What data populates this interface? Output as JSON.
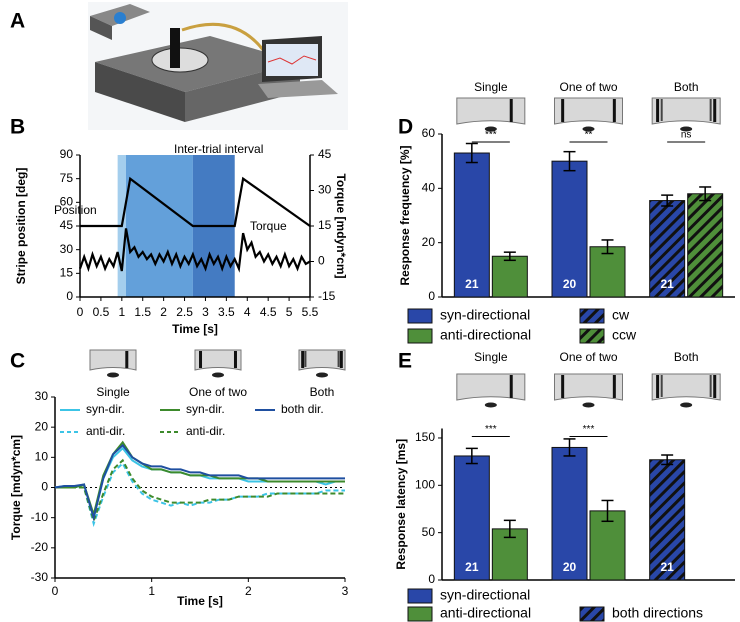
{
  "panels": [
    "A",
    "B",
    "C",
    "D",
    "E"
  ],
  "chart_data": [
    {
      "type": "line",
      "xlabel": "Time [s]",
      "ylabel": "Stripe position [deg]",
      "y2label": "Torque [mdyn*cm]",
      "annotations": [
        "Inter-trial interval"
      ],
      "shaded": [
        {
          "x0": 0.9,
          "x1": 1.1,
          "color": "#9fcbec"
        },
        {
          "x0": 1.1,
          "x1": 2.7,
          "color": "#5b9bd8"
        },
        {
          "x0": 2.7,
          "x1": 3.7,
          "color": "#3a74bf"
        }
      ],
      "xlim": [
        0,
        5.5
      ],
      "xticks": [
        0,
        0.5,
        1,
        1.5,
        2,
        2.5,
        3,
        3.5,
        4,
        4.5,
        5,
        5.5
      ],
      "ylim": [
        0,
        90
      ],
      "yticks": [
        0,
        15,
        30,
        45,
        60,
        75,
        90
      ],
      "y2lim": [
        -15,
        45
      ],
      "y2ticks": [
        -15,
        0,
        15,
        30,
        45
      ],
      "series": [
        {
          "name": "Position",
          "color": "#000000",
          "x": [
            0,
            1,
            1.2,
            2.7,
            3.7,
            3.9,
            5.5
          ],
          "values": [
            45,
            45,
            75,
            45,
            45,
            75,
            45
          ]
        },
        {
          "name": "Torque",
          "color": "#000000",
          "axis": "y2",
          "x": [
            0,
            0.1,
            0.2,
            0.3,
            0.4,
            0.5,
            0.6,
            0.7,
            0.8,
            0.9,
            1,
            1.1,
            1.2,
            1.3,
            1.4,
            1.5,
            1.6,
            1.7,
            1.8,
            1.9,
            2,
            2.1,
            2.2,
            2.3,
            2.4,
            2.5,
            2.6,
            2.7,
            2.8,
            2.9,
            3,
            3.1,
            3.2,
            3.3,
            3.4,
            3.5,
            3.6,
            3.7,
            3.8,
            3.9,
            4,
            4.1,
            4.2,
            4.3,
            4.4,
            4.5,
            4.6,
            4.7,
            4.8,
            4.9,
            5,
            5.1,
            5.2,
            5.3,
            5.4,
            5.5
          ],
          "values": [
            -3,
            2,
            -3,
            3,
            -2,
            2,
            -3,
            1,
            -2,
            4,
            -4,
            14,
            4,
            6,
            2,
            4,
            1,
            3,
            -1,
            3,
            0,
            4,
            -1,
            3,
            -2,
            2,
            -1,
            3,
            -2,
            1,
            -3,
            3,
            -1,
            2,
            -3,
            2,
            -2,
            1,
            -3,
            12,
            5,
            8,
            2,
            4,
            0,
            3,
            -1,
            2,
            -2,
            3,
            -2,
            1,
            -3,
            2,
            -1,
            0
          ]
        }
      ]
    },
    {
      "type": "line",
      "xlabel": "Time [s]",
      "ylabel": "Torque [mdyn*cm]",
      "legend_titles": [
        "Single",
        "One of two",
        "Both"
      ],
      "xlim": [
        0,
        3
      ],
      "xticks": [
        0,
        1,
        2,
        3
      ],
      "ylim": [
        -30,
        30
      ],
      "yticks": [
        -30,
        -20,
        -10,
        0,
        10,
        20,
        30
      ],
      "x": [
        0,
        0.1,
        0.2,
        0.3,
        0.4,
        0.5,
        0.6,
        0.7,
        0.8,
        0.9,
        1,
        1.1,
        1.2,
        1.3,
        1.4,
        1.5,
        1.6,
        1.7,
        1.8,
        1.9,
        2,
        2.1,
        2.2,
        2.3,
        2.4,
        2.5,
        2.6,
        2.7,
        2.8,
        2.9,
        3
      ],
      "series": [
        {
          "name": "syn-dir.",
          "color": "#3cc4e6",
          "dashed": false,
          "values": [
            0,
            0.5,
            0,
            1,
            -10,
            3,
            10,
            13,
            9,
            7,
            6,
            6,
            5,
            5,
            4,
            4,
            3,
            3,
            3,
            3,
            2,
            2,
            2,
            2,
            2,
            2,
            2,
            2,
            1,
            2,
            2
          ]
        },
        {
          "name": "anti-dir.",
          "color": "#3cc4e6",
          "dashed": true,
          "values": [
            0,
            0.5,
            0,
            0,
            -12,
            -3,
            5,
            8,
            2,
            -2,
            -4,
            -5,
            -6,
            -5,
            -6,
            -5,
            -5,
            -4,
            -4,
            -3,
            -3,
            -3,
            -2,
            -2,
            -2,
            -2,
            -2,
            -2,
            -1,
            -1,
            -1
          ]
        },
        {
          "name": "syn-dir.",
          "color": "#3d8a2c",
          "dashed": false,
          "values": [
            0,
            0,
            0,
            1,
            -9,
            4,
            11,
            15,
            10,
            8,
            6,
            6,
            5,
            5,
            4,
            4,
            4,
            3,
            3,
            3,
            3,
            3,
            2,
            2,
            2,
            2,
            2,
            2,
            2,
            2,
            2
          ]
        },
        {
          "name": "anti-dir.",
          "color": "#3d8a2c",
          "dashed": true,
          "values": [
            0,
            0,
            0,
            0,
            -11,
            -2,
            6,
            9,
            3,
            -1,
            -3,
            -4,
            -5,
            -5,
            -5,
            -5,
            -4,
            -4,
            -4,
            -3,
            -3,
            -3,
            -3,
            -2,
            -2,
            -2,
            -2,
            -2,
            -2,
            -2,
            -2
          ]
        },
        {
          "name": "both dir.",
          "color": "#1f4fa0",
          "dashed": false,
          "values": [
            0,
            0.5,
            0.5,
            1,
            -10,
            3,
            11,
            14,
            10,
            8,
            7,
            7,
            6,
            6,
            5,
            5,
            4,
            4,
            4,
            4,
            3,
            3,
            3,
            3,
            3,
            3,
            3,
            3,
            3,
            3,
            3
          ]
        }
      ]
    },
    {
      "type": "bar",
      "ylabel": "Response frequency [%]",
      "categories": [
        "Single",
        "One of two",
        "Both"
      ],
      "n": [
        21,
        20,
        21
      ],
      "significance": [
        "***",
        "**",
        "ns"
      ],
      "ylim": [
        0,
        60
      ],
      "yticks": [
        0,
        20,
        40,
        60
      ],
      "series": [
        {
          "name": "syn-directional",
          "color": "#2947a8",
          "hatch": false,
          "values": [
            53,
            50,
            null
          ],
          "errors": [
            3.5,
            3.5,
            null
          ]
        },
        {
          "name": "anti-directional",
          "color": "#4f8f3a",
          "hatch": false,
          "values": [
            15,
            18.5,
            null
          ],
          "errors": [
            1.5,
            2.5,
            null
          ]
        },
        {
          "name": "cw",
          "color": "#2947a8",
          "hatch": true,
          "values": [
            null,
            null,
            35.5
          ],
          "errors": [
            null,
            null,
            2
          ]
        },
        {
          "name": "ccw",
          "color": "#4f8f3a",
          "hatch": true,
          "values": [
            null,
            null,
            38
          ],
          "errors": [
            null,
            null,
            2.5
          ]
        }
      ]
    },
    {
      "type": "bar",
      "ylabel": "Response latency [ms]",
      "categories": [
        "Single",
        "One of two",
        "Both"
      ],
      "n": [
        21,
        20,
        21
      ],
      "significance": [
        "***",
        "***",
        null
      ],
      "ylim": [
        0,
        160
      ],
      "yticks": [
        0,
        50,
        100,
        150
      ],
      "series": [
        {
          "name": "syn-directional",
          "color": "#2947a8",
          "hatch": false,
          "values": [
            131,
            140,
            null
          ],
          "errors": [
            8,
            9,
            null
          ]
        },
        {
          "name": "anti-directional",
          "color": "#4f8f3a",
          "hatch": false,
          "values": [
            54,
            73,
            null
          ],
          "errors": [
            9,
            11,
            null
          ]
        },
        {
          "name": "both directions",
          "color": "#2947a8",
          "hatch": true,
          "values": [
            null,
            null,
            127
          ],
          "errors": [
            null,
            null,
            5
          ]
        }
      ]
    }
  ]
}
